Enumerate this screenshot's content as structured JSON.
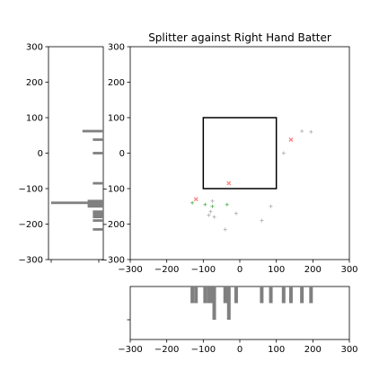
{
  "chart_data": [
    {
      "type": "scatter",
      "title": "Splitter against Right Hand Batter",
      "xlim": [
        -300,
        300
      ],
      "ylim": [
        -300,
        300
      ],
      "xticks": [
        -300,
        -200,
        -100,
        0,
        100,
        200,
        300
      ],
      "yticks": [
        -300,
        -200,
        -100,
        0,
        100,
        200,
        300
      ],
      "grid": false,
      "strike_zone": {
        "x": [
          -100,
          100
        ],
        "y": [
          -100,
          100
        ]
      },
      "series": [
        {
          "color": "#ff8080",
          "marker": "x",
          "points": [
            [
              -120,
              -130
            ],
            [
              -30,
              -85
            ],
            [
              140,
              38
            ]
          ]
        },
        {
          "color": "#5cb85c",
          "marker": "+",
          "points": [
            [
              -35,
              -145
            ],
            [
              -75,
              -150
            ],
            [
              -95,
              -145
            ],
            [
              -130,
              -140
            ]
          ]
        },
        {
          "color": "#b3b3b3",
          "marker": "+",
          "points": [
            [
              -80,
              -165
            ],
            [
              -70,
              -180
            ],
            [
              -85,
              -175
            ],
            [
              -75,
              -135
            ],
            [
              -40,
              -215
            ],
            [
              -10,
              -170
            ],
            [
              60,
              -190
            ],
            [
              85,
              -150
            ],
            [
              120,
              0
            ],
            [
              170,
              62
            ],
            [
              195,
              60
            ]
          ]
        }
      ]
    },
    {
      "type": "bar",
      "orientation": "horizontal",
      "axis": "y",
      "ylim": [
        -300,
        300
      ],
      "yticks": [
        -300,
        -200,
        -100,
        0,
        100,
        200,
        300
      ],
      "color": "#808080",
      "bins": [
        {
          "y": 62,
          "count": 4
        },
        {
          "y": 38,
          "count": 2
        },
        {
          "y": 0,
          "count": 2
        },
        {
          "y": -85,
          "count": 2
        },
        {
          "y": -135,
          "count": 3
        },
        {
          "y": -140,
          "count": 10
        },
        {
          "y": -145,
          "count": 3
        },
        {
          "y": -150,
          "count": 3
        },
        {
          "y": -165,
          "count": 2
        },
        {
          "y": -170,
          "count": 2
        },
        {
          "y": -175,
          "count": 2
        },
        {
          "y": -180,
          "count": 2
        },
        {
          "y": -190,
          "count": 2
        },
        {
          "y": -215,
          "count": 2
        }
      ]
    },
    {
      "type": "bar",
      "orientation": "vertical",
      "axis": "x",
      "xlim": [
        -300,
        300
      ],
      "xticks": [
        -300,
        -200,
        -100,
        0,
        100,
        200,
        300
      ],
      "color": "#808080",
      "bins": [
        {
          "x": -130,
          "count": 1
        },
        {
          "x": -120,
          "count": 1
        },
        {
          "x": -95,
          "count": 1
        },
        {
          "x": -85,
          "count": 1
        },
        {
          "x": -80,
          "count": 1
        },
        {
          "x": -75,
          "count": 1
        },
        {
          "x": -70,
          "count": 2
        },
        {
          "x": -40,
          "count": 1
        },
        {
          "x": -35,
          "count": 1
        },
        {
          "x": -30,
          "count": 2
        },
        {
          "x": -10,
          "count": 1
        },
        {
          "x": 60,
          "count": 1
        },
        {
          "x": 85,
          "count": 1
        },
        {
          "x": 120,
          "count": 1
        },
        {
          "x": 140,
          "count": 1
        },
        {
          "x": 170,
          "count": 1
        },
        {
          "x": 195,
          "count": 1
        }
      ]
    }
  ]
}
